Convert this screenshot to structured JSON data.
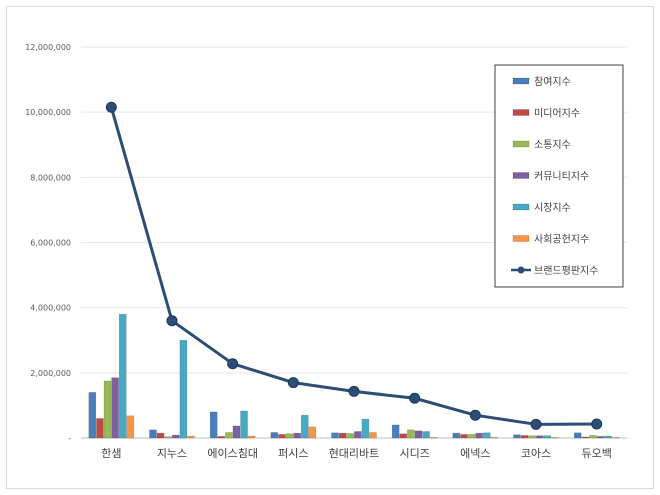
{
  "chart_data": {
    "type": "bar",
    "title": "",
    "xlabel": "",
    "ylabel": "",
    "ylim": [
      0,
      12000000
    ],
    "yticks": [
      "-",
      "2,000,000",
      "4,000,000",
      "6,000,000",
      "8,000,000",
      "10,000,000",
      "12,000,000"
    ],
    "grid": true,
    "legend_position": "right",
    "categories": [
      "한샘",
      "지누스",
      "에이스침대",
      "퍼시스",
      "현대리바트",
      "시디즈",
      "에넥스",
      "코아스",
      "듀오백"
    ],
    "series": [
      {
        "name": "참여지수",
        "kind": "bar",
        "color": "#4a7ebb",
        "values": [
          1400000,
          250000,
          800000,
          170000,
          160000,
          400000,
          150000,
          100000,
          160000
        ]
      },
      {
        "name": "미디어지수",
        "kind": "bar",
        "color": "#be4b48",
        "values": [
          600000,
          150000,
          50000,
          110000,
          150000,
          130000,
          110000,
          80000,
          30000
        ]
      },
      {
        "name": "소통지수",
        "kind": "bar",
        "color": "#98b954",
        "values": [
          1750000,
          40000,
          170000,
          130000,
          140000,
          250000,
          110000,
          70000,
          80000
        ]
      },
      {
        "name": "커뮤니티지수",
        "kind": "bar",
        "color": "#7d60a0",
        "values": [
          1850000,
          90000,
          370000,
          150000,
          200000,
          220000,
          150000,
          70000,
          50000
        ]
      },
      {
        "name": "시장지수",
        "kind": "bar",
        "color": "#46aac4",
        "values": [
          3800000,
          3000000,
          830000,
          700000,
          580000,
          200000,
          160000,
          70000,
          60000
        ]
      },
      {
        "name": "사회공헌지수",
        "kind": "bar",
        "color": "#f79646",
        "values": [
          680000,
          60000,
          60000,
          340000,
          170000,
          20000,
          20000,
          20000,
          20000
        ]
      },
      {
        "name": "브랜드평판지수",
        "kind": "line",
        "color": "#2c4d75",
        "values": [
          10150000,
          3600000,
          2280000,
          1700000,
          1430000,
          1220000,
          700000,
          420000,
          430000
        ]
      }
    ]
  }
}
